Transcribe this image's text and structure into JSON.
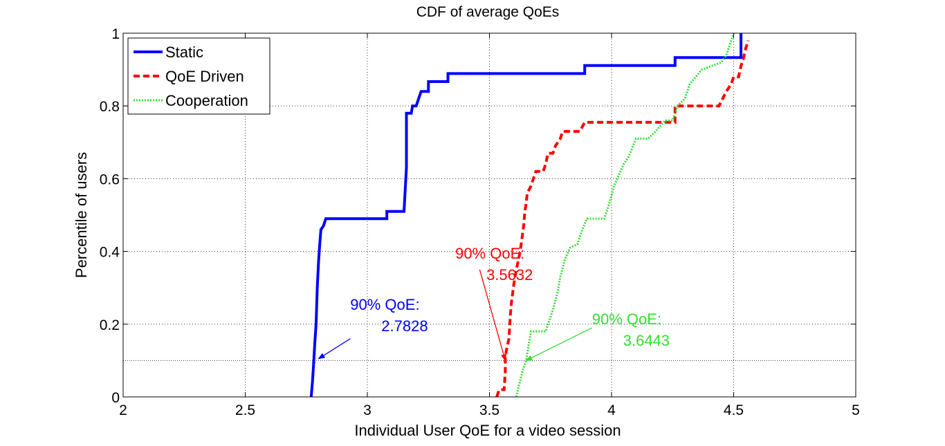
{
  "chart_data": {
    "type": "line",
    "title": "CDF of average QoEs",
    "xlabel": "Individual User QoE for a video session",
    "ylabel": "Percentile of users",
    "xlim": [
      2,
      5
    ],
    "ylim": [
      0,
      1
    ],
    "xticks": [
      2,
      2.5,
      3,
      3.5,
      4,
      4.5,
      5
    ],
    "xtick_labels": [
      "2",
      "2.5",
      "3",
      "3.5",
      "4",
      "4.5",
      "5"
    ],
    "yticks": [
      0,
      0.2,
      0.4,
      0.6,
      0.8,
      1
    ],
    "ytick_labels": [
      "0",
      "0.2",
      "0.4",
      "0.6",
      "0.8",
      "1"
    ],
    "reference_line_y": 0.1,
    "grid": true,
    "legend_position": "top-left",
    "series": [
      {
        "name": "Static",
        "color": "#0000ff",
        "style": "solid",
        "points": [
          [
            2.77,
            0.0
          ],
          [
            2.775,
            0.04
          ],
          [
            2.78,
            0.09
          ],
          [
            2.785,
            0.15
          ],
          [
            2.79,
            0.2
          ],
          [
            2.795,
            0.3
          ],
          [
            2.8,
            0.37
          ],
          [
            2.805,
            0.42
          ],
          [
            2.81,
            0.46
          ],
          [
            2.82,
            0.47
          ],
          [
            2.83,
            0.49
          ],
          [
            3.08,
            0.49
          ],
          [
            3.08,
            0.51
          ],
          [
            3.15,
            0.51
          ],
          [
            3.16,
            0.63
          ],
          [
            3.16,
            0.78
          ],
          [
            3.18,
            0.78
          ],
          [
            3.185,
            0.8
          ],
          [
            3.2,
            0.8
          ],
          [
            3.21,
            0.82
          ],
          [
            3.22,
            0.84
          ],
          [
            3.25,
            0.84
          ],
          [
            3.25,
            0.867
          ],
          [
            3.33,
            0.867
          ],
          [
            3.33,
            0.889
          ],
          [
            3.89,
            0.889
          ],
          [
            3.89,
            0.911
          ],
          [
            4.26,
            0.911
          ],
          [
            4.26,
            0.933
          ],
          [
            4.53,
            0.933
          ],
          [
            4.53,
            1.0
          ]
        ]
      },
      {
        "name": "QoE Driven",
        "color": "#ff0000",
        "style": "dashed",
        "points": [
          [
            3.53,
            0.0
          ],
          [
            3.54,
            0.02
          ],
          [
            3.56,
            0.02
          ],
          [
            3.565,
            0.07
          ],
          [
            3.565,
            0.11
          ],
          [
            3.57,
            0.13
          ],
          [
            3.58,
            0.16
          ],
          [
            3.585,
            0.22
          ],
          [
            3.59,
            0.26
          ],
          [
            3.6,
            0.31
          ],
          [
            3.61,
            0.35
          ],
          [
            3.62,
            0.38
          ],
          [
            3.63,
            0.42
          ],
          [
            3.64,
            0.47
          ],
          [
            3.645,
            0.51
          ],
          [
            3.65,
            0.53
          ],
          [
            3.655,
            0.56
          ],
          [
            3.67,
            0.58
          ],
          [
            3.68,
            0.6
          ],
          [
            3.69,
            0.62
          ],
          [
            3.72,
            0.62
          ],
          [
            3.73,
            0.64
          ],
          [
            3.74,
            0.67
          ],
          [
            3.76,
            0.67
          ],
          [
            3.77,
            0.69
          ],
          [
            3.79,
            0.71
          ],
          [
            3.8,
            0.73
          ],
          [
            3.87,
            0.73
          ],
          [
            3.89,
            0.755
          ],
          [
            4.26,
            0.755
          ],
          [
            4.26,
            0.8
          ],
          [
            4.44,
            0.8
          ],
          [
            4.47,
            0.84
          ],
          [
            4.49,
            0.86
          ],
          [
            4.5,
            0.88
          ],
          [
            4.52,
            0.88
          ],
          [
            4.53,
            0.91
          ],
          [
            4.54,
            0.93
          ],
          [
            4.55,
            0.96
          ],
          [
            4.56,
            0.98
          ]
        ]
      },
      {
        "name": "Cooperation",
        "color": "#33dd33",
        "style": "dotted",
        "points": [
          [
            3.61,
            0.0
          ],
          [
            3.62,
            0.03
          ],
          [
            3.635,
            0.07
          ],
          [
            3.65,
            0.1
          ],
          [
            3.66,
            0.14
          ],
          [
            3.67,
            0.18
          ],
          [
            3.73,
            0.18
          ],
          [
            3.74,
            0.2
          ],
          [
            3.76,
            0.24
          ],
          [
            3.78,
            0.29
          ],
          [
            3.79,
            0.33
          ],
          [
            3.81,
            0.38
          ],
          [
            3.83,
            0.41
          ],
          [
            3.86,
            0.42
          ],
          [
            3.88,
            0.46
          ],
          [
            3.9,
            0.49
          ],
          [
            3.97,
            0.49
          ],
          [
            3.99,
            0.53
          ],
          [
            4.01,
            0.58
          ],
          [
            4.03,
            0.61
          ],
          [
            4.05,
            0.64
          ],
          [
            4.07,
            0.66
          ],
          [
            4.1,
            0.71
          ],
          [
            4.15,
            0.71
          ],
          [
            4.18,
            0.73
          ],
          [
            4.22,
            0.76
          ],
          [
            4.25,
            0.76
          ],
          [
            4.27,
            0.8
          ],
          [
            4.3,
            0.82
          ],
          [
            4.32,
            0.86
          ],
          [
            4.37,
            0.9
          ],
          [
            4.45,
            0.92
          ],
          [
            4.47,
            0.94
          ],
          [
            4.49,
            0.98
          ],
          [
            4.5,
            1.0
          ]
        ]
      }
    ],
    "annotations": [
      {
        "text_line1": "90% QoE:",
        "text_line2": "2.7828",
        "color": "#0000ff",
        "arrow_to": [
          2.8,
          0.105
        ],
        "arrow_from": [
          2.93,
          0.16
        ],
        "label_x": 2.93,
        "label_y": 0.24
      },
      {
        "text_line1": "90% QoE:",
        "text_line2": "3.5632",
        "color": "#ff0000",
        "arrow_to": [
          3.565,
          0.1
        ],
        "arrow_from": [
          3.46,
          0.35
        ],
        "label_x": 3.36,
        "label_y": 0.38
      },
      {
        "text_line1": "90% QoE:",
        "text_line2": "3.6443",
        "color": "#33dd33",
        "arrow_to": [
          3.65,
          0.1
        ],
        "arrow_from": [
          3.92,
          0.19
        ],
        "label_x": 3.92,
        "label_y": 0.2
      }
    ]
  }
}
